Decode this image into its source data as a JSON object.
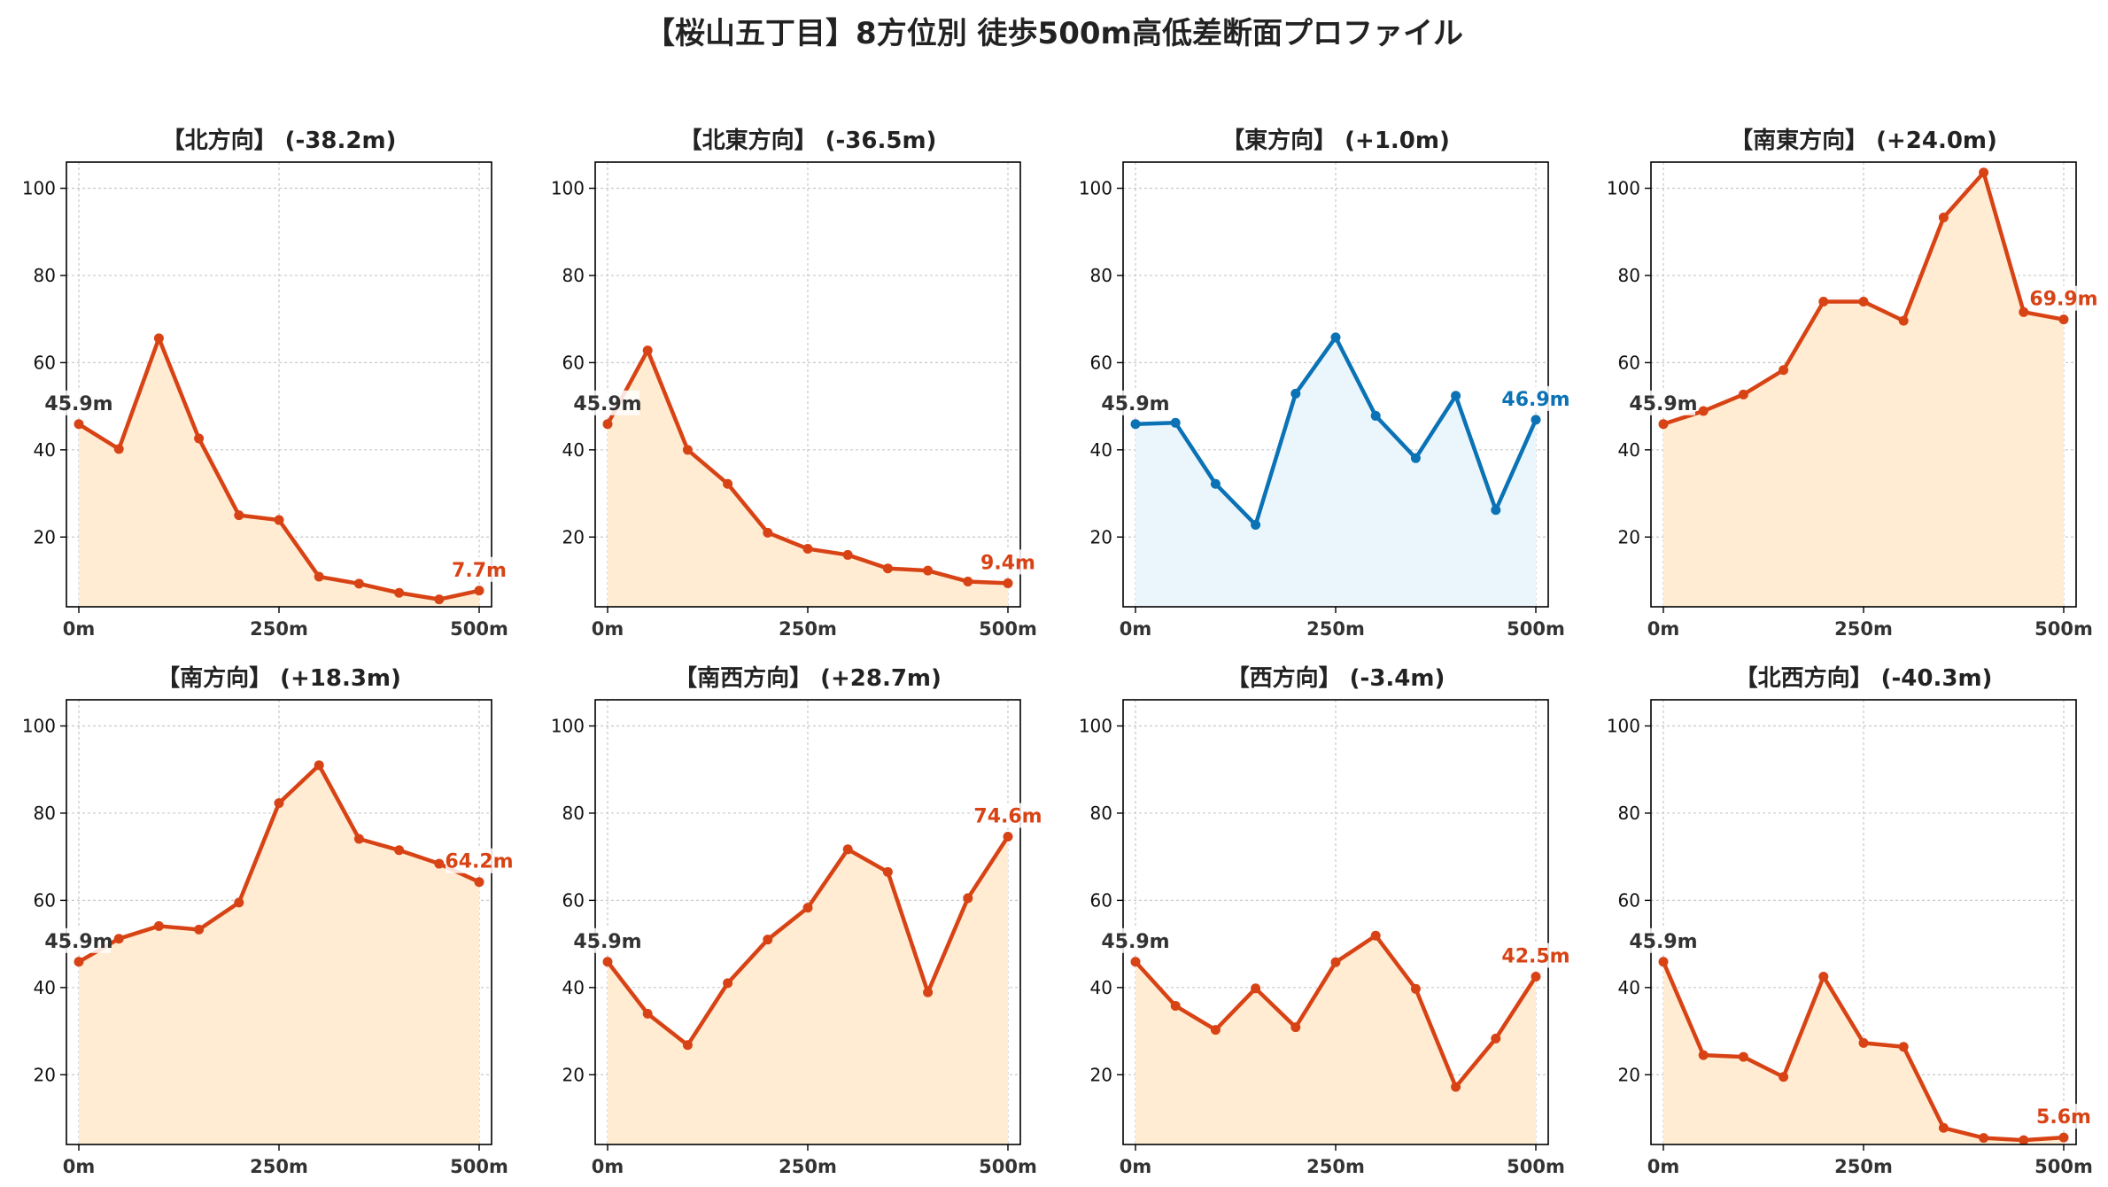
{
  "suptitle": "【桜山五丁目】8方位別 徒歩500m高低差断面プロファイル",
  "colors": {
    "descend_or_ascend_line": "#d84315",
    "descend_or_ascend_fill": "#ffecd2",
    "flat_line": "#0a72b5",
    "flat_fill": "#eaf6fb",
    "start_label": "#333333",
    "axis": "#000000",
    "grid": "#c8c8c8"
  },
  "chart_data": [
    {
      "type": "area",
      "title": "【北方向】 (-38.2m)",
      "x": [
        0,
        50,
        100,
        150,
        200,
        250,
        300,
        350,
        400,
        450,
        500
      ],
      "y": [
        45.9,
        40.2,
        65.6,
        42.6,
        25.0,
        23.9,
        10.9,
        9.3,
        7.2,
        5.7,
        7.7
      ],
      "xticks": [
        "0m",
        "250m",
        "500m"
      ],
      "yticks": [
        20,
        40,
        60,
        80,
        100
      ],
      "ylim": [
        4,
        106
      ],
      "start_label": "45.9m",
      "end_label": "7.7m",
      "style": "warm",
      "grid": true
    },
    {
      "type": "area",
      "title": "【北東方向】 (-36.5m)",
      "x": [
        0,
        50,
        100,
        150,
        200,
        250,
        300,
        350,
        400,
        450,
        500
      ],
      "y": [
        45.9,
        62.8,
        40.0,
        32.2,
        21.0,
        17.3,
        15.9,
        12.8,
        12.3,
        9.8,
        9.4
      ],
      "xticks": [
        "0m",
        "250m",
        "500m"
      ],
      "yticks": [
        20,
        40,
        60,
        80,
        100
      ],
      "ylim": [
        4,
        106
      ],
      "start_label": "45.9m",
      "end_label": "9.4m",
      "style": "warm",
      "grid": true
    },
    {
      "type": "area",
      "title": "【東方向】 (+1.0m)",
      "x": [
        0,
        50,
        100,
        150,
        200,
        250,
        300,
        350,
        400,
        450,
        500
      ],
      "y": [
        45.9,
        46.2,
        32.2,
        22.8,
        52.9,
        65.8,
        47.8,
        38.1,
        52.4,
        26.2,
        46.9
      ],
      "xticks": [
        "0m",
        "250m",
        "500m"
      ],
      "yticks": [
        20,
        40,
        60,
        80,
        100
      ],
      "ylim": [
        4,
        106
      ],
      "start_label": "45.9m",
      "end_label": "46.9m",
      "style": "cool",
      "grid": true
    },
    {
      "type": "area",
      "title": "【南東方向】 (+24.0m)",
      "x": [
        0,
        50,
        100,
        150,
        200,
        250,
        300,
        350,
        400,
        450,
        500
      ],
      "y": [
        45.9,
        48.9,
        52.7,
        58.3,
        74.0,
        74.0,
        69.6,
        93.3,
        103.6,
        71.6,
        69.9
      ],
      "xticks": [
        "0m",
        "250m",
        "500m"
      ],
      "yticks": [
        20,
        40,
        60,
        80,
        100
      ],
      "ylim": [
        4,
        106
      ],
      "start_label": "45.9m",
      "end_label": "69.9m",
      "style": "warm",
      "grid": true
    },
    {
      "type": "area",
      "title": "【南方向】 (+18.3m)",
      "x": [
        0,
        50,
        100,
        150,
        200,
        250,
        300,
        350,
        400,
        450,
        500
      ],
      "y": [
        45.9,
        51.2,
        54.1,
        53.3,
        59.5,
        82.3,
        91.0,
        74.1,
        71.5,
        68.4,
        64.2
      ],
      "xticks": [
        "0m",
        "250m",
        "500m"
      ],
      "yticks": [
        20,
        40,
        60,
        80,
        100
      ],
      "ylim": [
        4,
        106
      ],
      "start_label": "45.9m",
      "end_label": "64.2m",
      "style": "warm",
      "grid": true
    },
    {
      "type": "area",
      "title": "【南西方向】 (+28.7m)",
      "x": [
        0,
        50,
        100,
        150,
        200,
        250,
        300,
        350,
        400,
        450,
        500
      ],
      "y": [
        45.9,
        34.0,
        26.8,
        41.0,
        51.0,
        58.3,
        71.7,
        66.5,
        38.9,
        60.5,
        74.6
      ],
      "xticks": [
        "0m",
        "250m",
        "500m"
      ],
      "yticks": [
        20,
        40,
        60,
        80,
        100
      ],
      "ylim": [
        4,
        106
      ],
      "start_label": "45.9m",
      "end_label": "74.6m",
      "style": "warm",
      "grid": true
    },
    {
      "type": "area",
      "title": "【西方向】 (-3.4m)",
      "x": [
        0,
        50,
        100,
        150,
        200,
        250,
        300,
        350,
        400,
        450,
        500
      ],
      "y": [
        45.9,
        35.8,
        30.3,
        39.8,
        30.9,
        45.8,
        51.9,
        39.7,
        17.2,
        28.3,
        42.5
      ],
      "xticks": [
        "0m",
        "250m",
        "500m"
      ],
      "yticks": [
        20,
        40,
        60,
        80,
        100
      ],
      "ylim": [
        4,
        106
      ],
      "start_label": "45.9m",
      "end_label": "42.5m",
      "style": "warm",
      "grid": true
    },
    {
      "type": "area",
      "title": "【北西方向】 (-40.3m)",
      "x": [
        0,
        50,
        100,
        150,
        200,
        250,
        300,
        350,
        400,
        450,
        500
      ],
      "y": [
        45.9,
        24.5,
        24.1,
        19.5,
        42.5,
        27.3,
        26.4,
        7.8,
        5.5,
        5.0,
        5.6
      ],
      "xticks": [
        "0m",
        "250m",
        "500m"
      ],
      "yticks": [
        20,
        40,
        60,
        80,
        100
      ],
      "ylim": [
        4,
        106
      ],
      "start_label": "45.9m",
      "end_label": "5.6m",
      "style": "warm",
      "grid": true
    }
  ]
}
